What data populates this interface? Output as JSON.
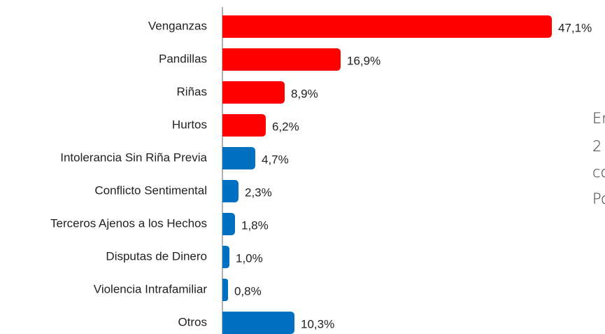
{
  "chart_data": {
    "type": "bar",
    "orientation": "horizontal",
    "categories": [
      "Venganzas",
      "Pandillas",
      "Riñas",
      "Hurtos",
      "Intolerancia Sin Riña Previa",
      "Conflicto Sentimental",
      "Terceros Ajenos a los Hechos",
      "Disputas de Dinero",
      "Violencia Intrafamiliar",
      "Otros"
    ],
    "values": [
      47.1,
      16.9,
      8.9,
      6.2,
      4.7,
      2.3,
      1.8,
      1.0,
      0.8,
      10.3
    ],
    "value_labels": [
      "47,1%",
      "16,9%",
      "8,9%",
      "6,2%",
      "4,7%",
      "2,3%",
      "1,8%",
      "1,0%",
      "0,8%",
      "10,3%"
    ],
    "colors": [
      "#ff0000",
      "#ff0000",
      "#ff0000",
      "#ff0000",
      "#0070c0",
      "#0070c0",
      "#0070c0",
      "#0070c0",
      "#0070c0",
      "#0070c0"
    ],
    "xlim": [
      0,
      50
    ],
    "annotations": [
      "En",
      "2",
      "co",
      "Po"
    ]
  }
}
